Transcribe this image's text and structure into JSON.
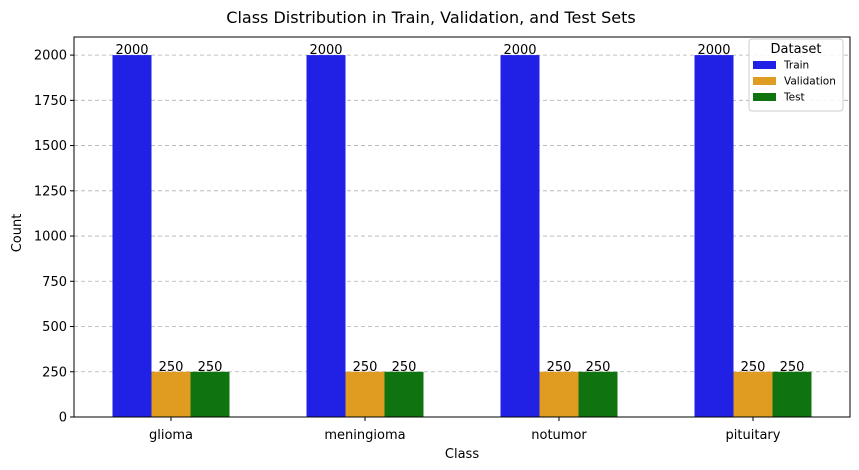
{
  "chart_data": {
    "type": "bar",
    "title": "Class Distribution in Train, Validation, and Test Sets",
    "xlabel": "Class",
    "ylabel": "Count",
    "categories": [
      "glioma",
      "meningioma",
      "notumor",
      "pituitary"
    ],
    "series": [
      {
        "name": "Train",
        "values": [
          2000,
          2000,
          2000,
          2000
        ],
        "color": "#2121e6"
      },
      {
        "name": "Validation",
        "values": [
          250,
          250,
          250,
          250
        ],
        "color": "#e09c21"
      },
      {
        "name": "Test",
        "values": [
          250,
          250,
          250,
          250
        ],
        "color": "#0f730f"
      }
    ],
    "ylim": [
      0,
      2100
    ],
    "yticks": [
      0,
      250,
      500,
      750,
      1000,
      1250,
      1500,
      1750,
      2000
    ],
    "grid": "y-dashed",
    "legend": {
      "title": "Dataset",
      "placement": "top-right"
    },
    "data_labels": true
  }
}
